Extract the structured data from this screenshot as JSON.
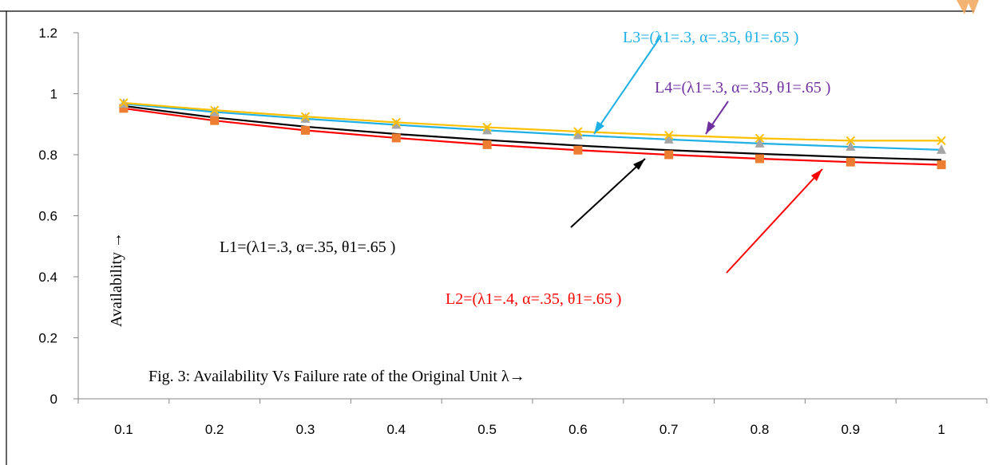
{
  "chart_data": {
    "type": "line",
    "title": "Fig. 3: Availability Vs Failure rate of the Original Unit λ→",
    "ylabel": "Availability →",
    "xlabel": "",
    "x": [
      "0.1",
      "0.2",
      "0.3",
      "0.4",
      "0.5",
      "0.6",
      "0.7",
      "0.8",
      "0.9",
      "1"
    ],
    "ylim": [
      0,
      1.2
    ],
    "yticks": [
      "0",
      "0.2",
      "0.4",
      "0.6",
      "0.8",
      "1",
      "1.2"
    ],
    "grid": false,
    "series": [
      {
        "name": "L1=(λ1=.3, α=.35, θ1=.65 )",
        "color": "#000000",
        "marker": "none",
        "values": [
          0.96,
          0.922,
          0.892,
          0.868,
          0.848,
          0.83,
          0.815,
          0.803,
          0.792,
          0.783
        ]
      },
      {
        "name": "L2=(λ1=.4, α=.35, θ1=.65 )",
        "color": "#ff0000",
        "marker": "square",
        "values": [
          0.952,
          0.912,
          0.88,
          0.855,
          0.833,
          0.815,
          0.8,
          0.787,
          0.776,
          0.767
        ]
      },
      {
        "name": "L3=(λ1=.3, α=.35, θ1=.65 )",
        "color": "#1fb0e6",
        "marker": "triangle",
        "values": [
          0.967,
          0.94,
          0.918,
          0.898,
          0.88,
          0.864,
          0.85,
          0.837,
          0.826,
          0.816
        ]
      },
      {
        "name": "L4=(λ1=.3, α=.35, θ1=.65 )",
        "color": "#ffc000",
        "marker": "x",
        "values": [
          0.97,
          0.946,
          0.925,
          0.906,
          0.89,
          0.876,
          0.864,
          0.854,
          0.846,
          0.846
        ]
      }
    ],
    "annotations": [
      {
        "text": "L3=(λ1=.3, α=.35, θ1=.65 )",
        "color": "#1fb0e6"
      },
      {
        "text": "L4=(λ1=.3, α=.35, θ1=.65 )",
        "color": "#7030a0"
      },
      {
        "text": "L1=(λ1=.3, α=.35, θ1=.65 )",
        "color": "#000000"
      },
      {
        "text": "L2=(λ1=.4, α=.35, θ1=.65 )",
        "color": "#ff0000"
      }
    ]
  }
}
